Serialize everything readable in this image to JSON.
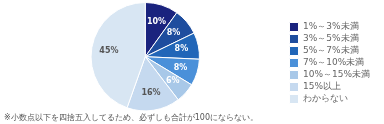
{
  "chart_data": {
    "type": "pie",
    "categories": [
      "1%～3%未満",
      "3%～5%未満",
      "5%～7%未満",
      "7%～10%未満",
      "10%～15%未満",
      "15%以上",
      "わからない"
    ],
    "values": [
      10,
      8,
      8,
      8,
      6,
      16,
      45
    ],
    "value_labels": [
      "10%",
      "8%",
      "8%",
      "8%",
      "6%",
      "16%",
      "45%"
    ],
    "colors": [
      "#1a237e",
      "#1e4d9e",
      "#2166b8",
      "#4a90d9",
      "#a8c8e8",
      "#c5d9ef",
      "#d8e6f3"
    ],
    "data_labels": true,
    "legend": "right",
    "annotations": [
      "※小数点以下を四捨五入してるため、必ずしも合計が100にならない。"
    ]
  }
}
